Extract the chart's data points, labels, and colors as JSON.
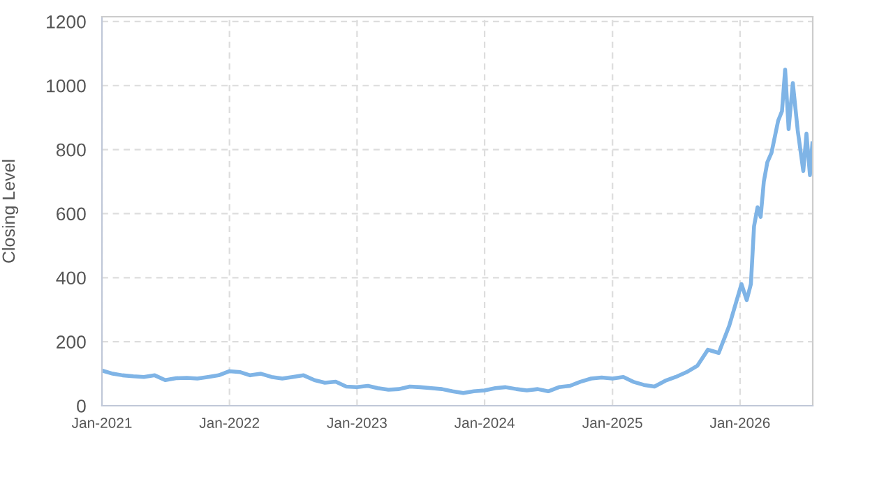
{
  "chart_data": {
    "type": "line",
    "ylabel": "Closing Level",
    "color": "#7fb4e6",
    "x": [
      "2021-01-01",
      "2021-02-01",
      "2021-03-01",
      "2021-04-01",
      "2021-05-01",
      "2021-06-01",
      "2021-07-01",
      "2021-08-01",
      "2021-09-01",
      "2021-10-01",
      "2021-11-01",
      "2021-12-01",
      "2022-01-01",
      "2022-02-01",
      "2022-03-01",
      "2022-04-01",
      "2022-05-01",
      "2022-06-01",
      "2022-07-01",
      "2022-08-01",
      "2022-09-01",
      "2022-10-01",
      "2022-11-01",
      "2022-12-01",
      "2023-01-01",
      "2023-02-01",
      "2023-03-01",
      "2023-04-01",
      "2023-05-01",
      "2023-06-01",
      "2023-07-01",
      "2023-08-01",
      "2023-09-01",
      "2023-10-01",
      "2023-11-01",
      "2023-12-01",
      "2024-01-01",
      "2024-02-01",
      "2024-03-01",
      "2024-04-01",
      "2024-05-01",
      "2024-06-01",
      "2024-07-01",
      "2024-08-01",
      "2024-09-01",
      "2024-10-01",
      "2024-11-01",
      "2024-12-01",
      "2025-01-01",
      "2025-02-01",
      "2025-03-01",
      "2025-04-01",
      "2025-05-01",
      "2025-06-01",
      "2025-07-01",
      "2025-08-01",
      "2025-09-01",
      "2025-10-01",
      "2025-11-01",
      "2025-12-01",
      "2026-01-05",
      "2026-01-20",
      "2026-02-01",
      "2026-02-10",
      "2026-02-20",
      "2026-03-01",
      "2026-03-10",
      "2026-03-20",
      "2026-04-01",
      "2026-04-20",
      "2026-05-01",
      "2026-05-10",
      "2026-05-20",
      "2026-06-01",
      "2026-06-15",
      "2026-07-01",
      "2026-07-10",
      "2026-07-20",
      "2026-07-27"
    ],
    "values": [
      110,
      100,
      95,
      92,
      90,
      95,
      80,
      86,
      87,
      85,
      90,
      95,
      108,
      105,
      95,
      100,
      90,
      85,
      90,
      95,
      80,
      72,
      75,
      60,
      58,
      62,
      55,
      50,
      52,
      60,
      58,
      55,
      52,
      45,
      40,
      45,
      48,
      55,
      58,
      52,
      48,
      52,
      45,
      58,
      62,
      75,
      85,
      88,
      85,
      90,
      75,
      65,
      60,
      78,
      90,
      105,
      125,
      175,
      165,
      250,
      380,
      330,
      380,
      560,
      620,
      590,
      700,
      760,
      790,
      890,
      920,
      1050,
      864,
      1008,
      860,
      733,
      850,
      720,
      820
    ],
    "xlim": [
      "2021-01-01",
      "2026-07-28"
    ],
    "xticks": [
      {
        "value": "2021-01-01",
        "label": "Jan-2021"
      },
      {
        "value": "2022-01-01",
        "label": "Jan-2022"
      },
      {
        "value": "2023-01-01",
        "label": "Jan-2023"
      },
      {
        "value": "2024-01-01",
        "label": "Jan-2024"
      },
      {
        "value": "2025-01-01",
        "label": "Jan-2025"
      },
      {
        "value": "2026-01-01",
        "label": "Jan-2026"
      }
    ],
    "ylim": [
      0,
      1215
    ],
    "yticks": [
      0,
      200,
      400,
      600,
      800,
      1000,
      1200
    ],
    "grid": true,
    "line_style": "solid",
    "marker": "none"
  }
}
